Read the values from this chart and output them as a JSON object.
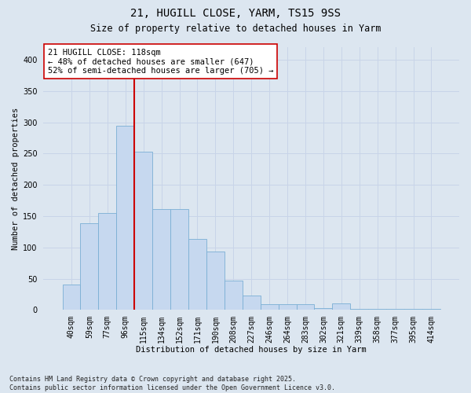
{
  "title_line1": "21, HUGILL CLOSE, YARM, TS15 9SS",
  "title_line2": "Size of property relative to detached houses in Yarm",
  "xlabel": "Distribution of detached houses by size in Yarm",
  "ylabel": "Number of detached properties",
  "categories": [
    "40sqm",
    "59sqm",
    "77sqm",
    "96sqm",
    "115sqm",
    "134sqm",
    "152sqm",
    "171sqm",
    "190sqm",
    "208sqm",
    "227sqm",
    "246sqm",
    "264sqm",
    "283sqm",
    "302sqm",
    "321sqm",
    "339sqm",
    "358sqm",
    "377sqm",
    "395sqm",
    "414sqm"
  ],
  "values": [
    41,
    138,
    155,
    294,
    253,
    161,
    161,
    113,
    94,
    47,
    23,
    9,
    9,
    9,
    3,
    10,
    2,
    2,
    2,
    2,
    2
  ],
  "bar_color": "#c6d8ef",
  "bar_edgecolor": "#7aafd4",
  "vline_x_index": 3,
  "vline_color": "#cc0000",
  "annotation_text": "21 HUGILL CLOSE: 118sqm\n← 48% of detached houses are smaller (647)\n52% of semi-detached houses are larger (705) →",
  "annotation_box_facecolor": "#ffffff",
  "annotation_box_edgecolor": "#cc0000",
  "ylim": [
    0,
    420
  ],
  "yticks": [
    0,
    50,
    100,
    150,
    200,
    250,
    300,
    350,
    400
  ],
  "grid_color": "#c8d4e8",
  "bg_color": "#dce6f0",
  "footnote": "Contains HM Land Registry data © Crown copyright and database right 2025.\nContains public sector information licensed under the Open Government Licence v3.0.",
  "title_fontsize": 10,
  "subtitle_fontsize": 8.5,
  "ylabel_fontsize": 7.5,
  "xlabel_fontsize": 7.5,
  "tick_fontsize": 7,
  "annotation_fontsize": 7.5,
  "footnote_fontsize": 6
}
